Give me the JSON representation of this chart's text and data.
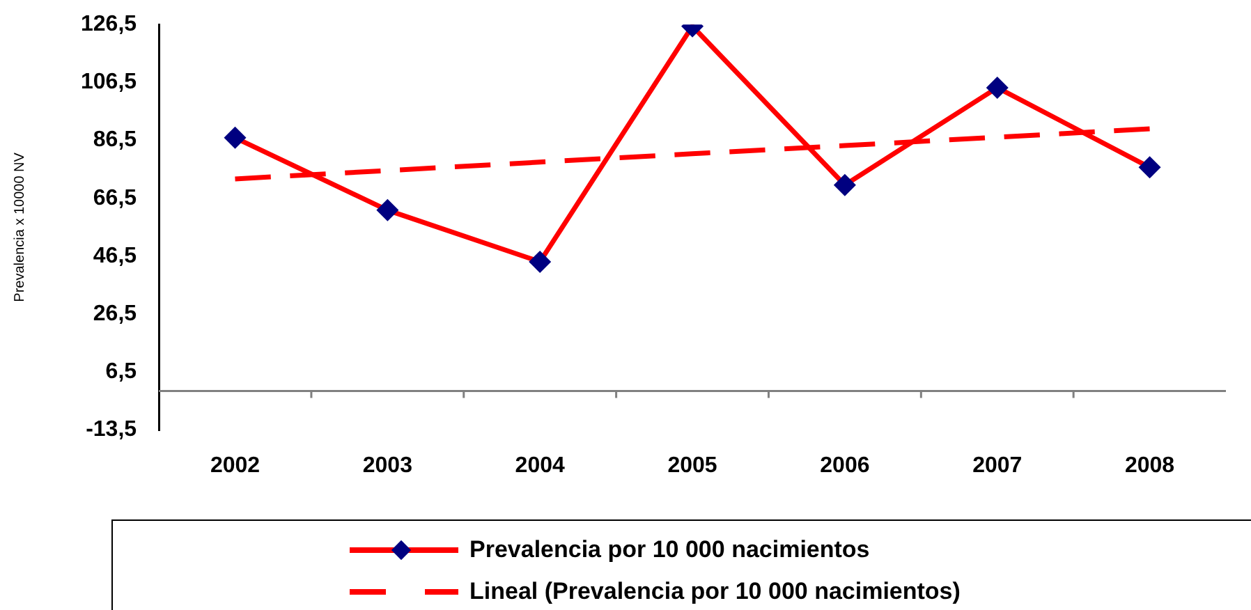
{
  "chart_data": {
    "type": "line",
    "ylabel": "Prevalencia x 10000 NV",
    "categories": [
      "2002",
      "2003",
      "2004",
      "2005",
      "2006",
      "2007",
      "2008"
    ],
    "series": [
      {
        "name": "Prevalencia por 10 000 nacimientos",
        "color": "#ff0000",
        "values": [
          87.4,
          62.4,
          44.6,
          125.9,
          71.1,
          104.7,
          77.2
        ],
        "marker": "diamond",
        "line_style": "solid"
      },
      {
        "name": "Lineal (Prevalencia por 10 000 nacimientos)",
        "color": "#ff0000",
        "values": [
          73.2,
          76.1,
          79.0,
          81.9,
          84.7,
          87.6,
          90.5
        ],
        "marker": "none",
        "line_style": "dashed"
      }
    ],
    "ylim": [
      -13.5,
      126.5
    ],
    "yticks": [
      {
        "value": -13.5,
        "label": "-13,5"
      },
      {
        "value": 6.5,
        "label": "6,5"
      },
      {
        "value": 26.5,
        "label": "26,5"
      },
      {
        "value": 46.5,
        "label": "46,5"
      },
      {
        "value": 66.5,
        "label": "66,5"
      },
      {
        "value": 86.5,
        "label": "86,5"
      },
      {
        "value": 106.5,
        "label": "106,5"
      },
      {
        "value": 126.5,
        "label": "126,5"
      }
    ],
    "grid": false,
    "legend": "bottom"
  }
}
